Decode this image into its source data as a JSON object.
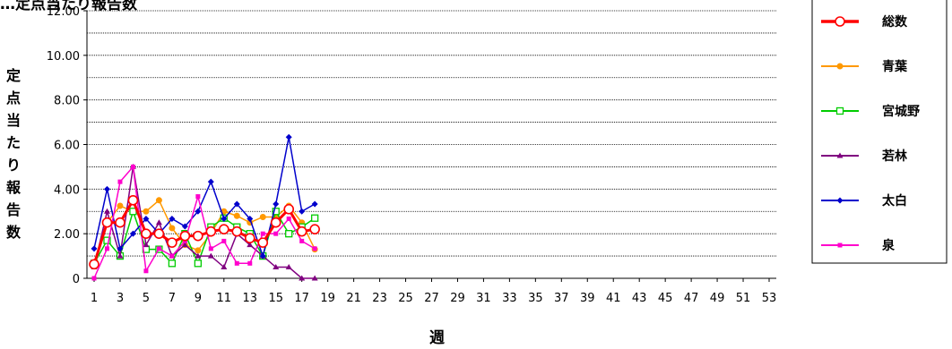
{
  "title": "…定点当たり報告数",
  "chart_data": {
    "type": "line",
    "title": "…定点当たり報告数",
    "xlabel": "週",
    "ylabel": "定点当たり報告数",
    "ylim": [
      0,
      12
    ],
    "y_ticks": [
      "0",
      "2.00",
      "4.00",
      "6.00",
      "8.00",
      "10.00",
      "12.00"
    ],
    "x_ticks": [
      "1",
      "3",
      "5",
      "7",
      "9",
      "11",
      "13",
      "15",
      "17",
      "19",
      "21",
      "23",
      "25",
      "27",
      "29",
      "31",
      "33",
      "35",
      "37",
      "39",
      "41",
      "43",
      "45",
      "47",
      "49",
      "51",
      "53"
    ],
    "xlim": [
      1,
      53
    ],
    "grid": "horizontal-dotted",
    "legend_position": "right",
    "x": [
      1,
      2,
      3,
      4,
      5,
      6,
      7,
      8,
      9,
      10,
      11,
      12,
      13,
      14,
      15,
      16,
      17,
      18
    ],
    "series": [
      {
        "name": "総数",
        "color": "#ff0000",
        "marker": "circle-open",
        "width": 3,
        "values": [
          0.63,
          2.5,
          2.5,
          3.5,
          2.0,
          2.0,
          1.6,
          1.9,
          1.9,
          2.1,
          2.2,
          2.1,
          1.8,
          1.6,
          2.5,
          3.1,
          2.1,
          2.2
        ]
      },
      {
        "name": "青葉",
        "color": "#ff9900",
        "marker": "circle",
        "width": 1.5,
        "values": [
          0.7,
          2.5,
          3.25,
          3.0,
          3.0,
          3.5,
          2.25,
          1.5,
          1.25,
          2.0,
          3.0,
          2.8,
          2.5,
          2.75,
          2.75,
          3.25,
          2.5,
          1.3
        ]
      },
      {
        "name": "宮城野",
        "color": "#00cc00",
        "marker": "square-open",
        "width": 1.5,
        "values": [
          0.67,
          1.7,
          1.0,
          3.0,
          1.3,
          1.3,
          0.67,
          2.0,
          0.67,
          2.3,
          2.7,
          2.3,
          2.0,
          1.0,
          3.0,
          2.0,
          2.3,
          2.7
        ]
      },
      {
        "name": "若林",
        "color": "#800080",
        "marker": "triangle",
        "width": 1.5,
        "values": [
          0.5,
          3.0,
          1.0,
          5.0,
          1.5,
          2.5,
          1.0,
          1.5,
          1.0,
          1.0,
          0.5,
          2.0,
          1.5,
          1.0,
          0.5,
          0.5,
          0.0,
          0.0
        ]
      },
      {
        "name": "太白",
        "color": "#0000cc",
        "marker": "diamond",
        "width": 1.5,
        "values": [
          1.33,
          4.0,
          1.33,
          2.0,
          2.67,
          2.0,
          2.67,
          2.33,
          3.0,
          4.33,
          2.67,
          3.33,
          2.67,
          1.0,
          3.33,
          6.33,
          3.0,
          3.33
        ]
      },
      {
        "name": "泉",
        "color": "#ff00cc",
        "marker": "square",
        "width": 1.5,
        "values": [
          0.0,
          1.33,
          4.33,
          5.0,
          0.33,
          1.33,
          1.0,
          1.67,
          3.67,
          1.33,
          1.67,
          0.67,
          0.67,
          2.0,
          2.0,
          2.67,
          1.67,
          1.33
        ]
      }
    ]
  }
}
